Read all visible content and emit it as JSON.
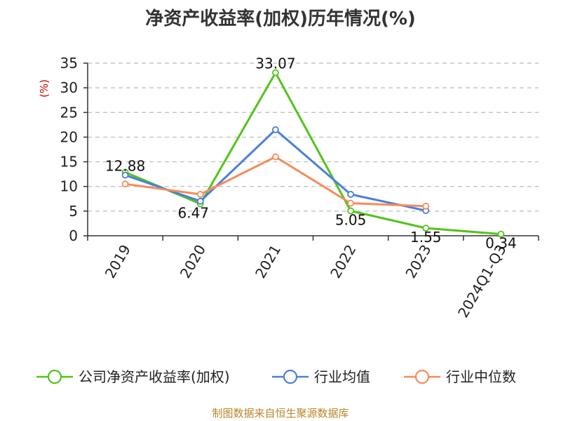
{
  "chart_data": {
    "type": "line",
    "title": "净资产收益率(加权)历年情况(%)",
    "ylabel": "(%)",
    "xlabel": "",
    "categories": [
      "2019",
      "2020",
      "2021",
      "2022",
      "2023",
      "2024Q1-Q3"
    ],
    "ylim": [
      0,
      35
    ],
    "yticks": [
      0,
      5,
      10,
      15,
      20,
      25,
      30,
      35
    ],
    "grid": true,
    "legend_position": "bottom",
    "series": [
      {
        "name": "公司净资产收益率(加权)",
        "color": "#52c41a",
        "values": [
          12.88,
          6.47,
          33.07,
          5.05,
          1.55,
          0.34
        ],
        "labels": [
          "12.88",
          "6.47",
          "33.07",
          "5.05",
          "1.55",
          "0.34"
        ]
      },
      {
        "name": "行业均值",
        "color": "#4a7fdb",
        "values": [
          12.3,
          7.0,
          21.5,
          8.4,
          5.1,
          null
        ]
      },
      {
        "name": "行业中位数",
        "color": "#f58c5a",
        "values": [
          10.5,
          8.4,
          16.0,
          6.6,
          6.0,
          null
        ]
      }
    ]
  },
  "footer": "制图数据来自恒生聚源数据库"
}
